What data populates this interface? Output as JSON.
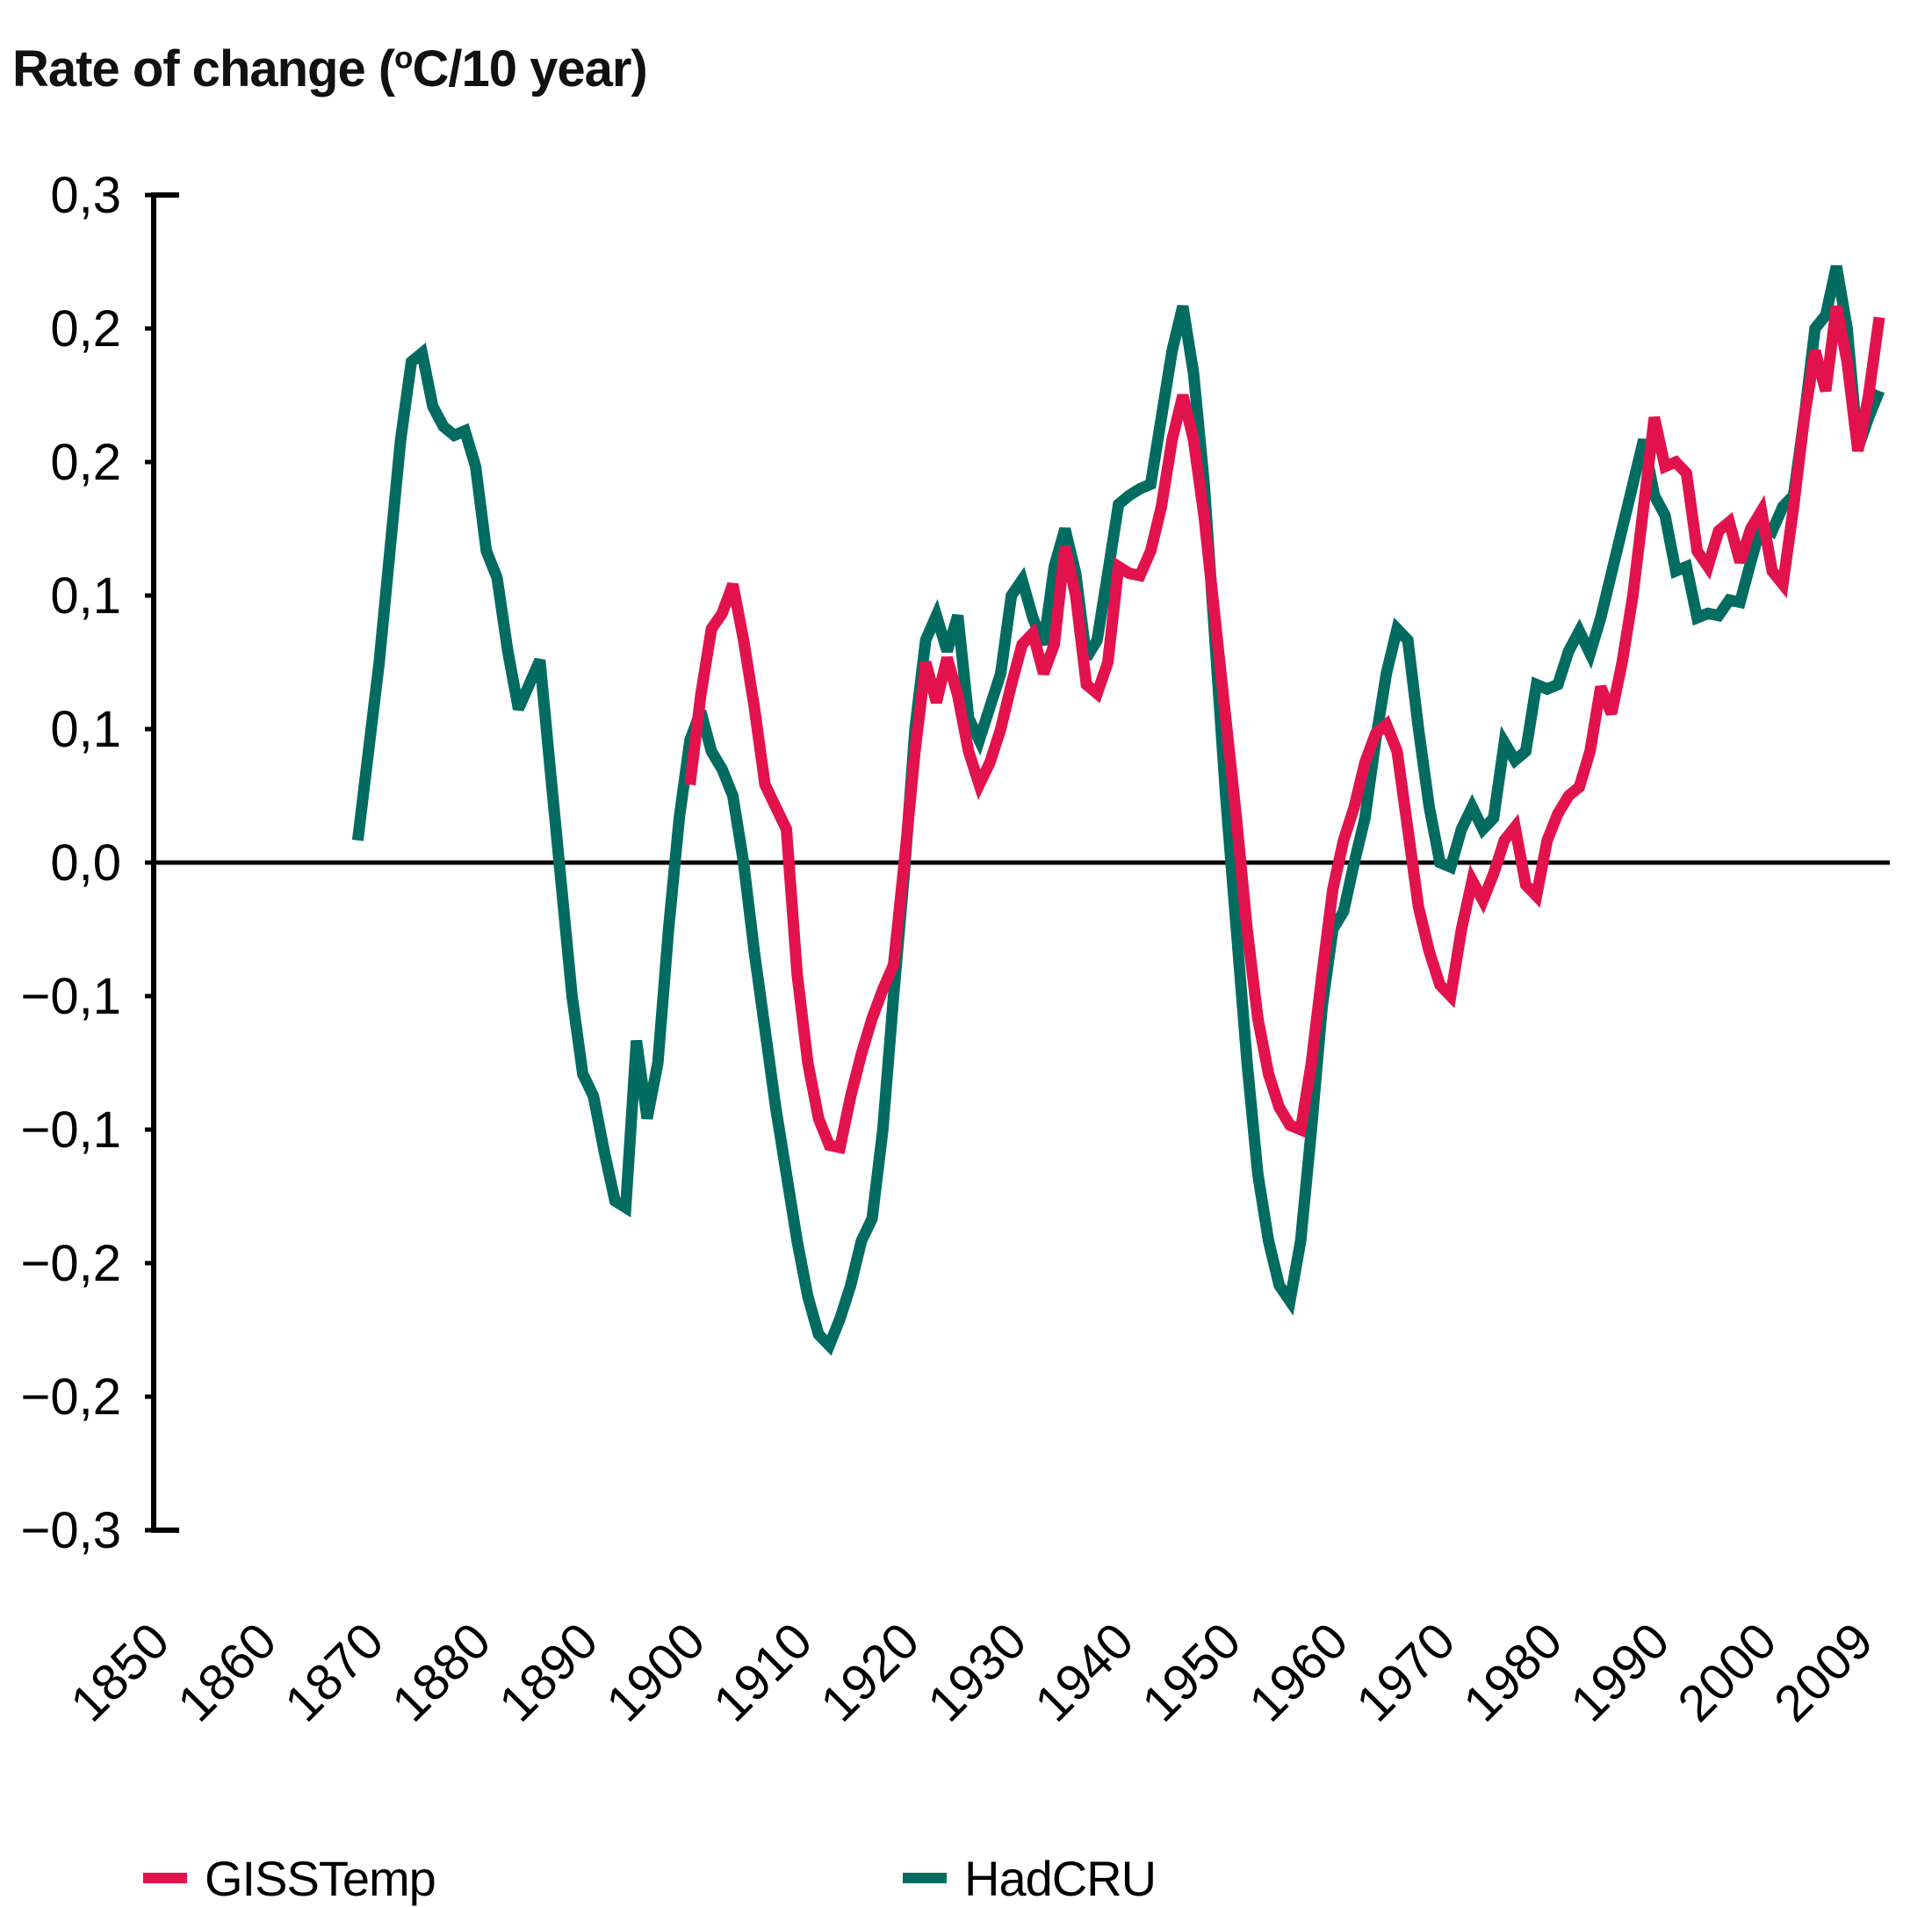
{
  "title": {
    "prefix": "Rate of change (",
    "sup": "o",
    "suffix": "C/10 year)",
    "full": "Rate of change (°C/10 year)"
  },
  "legend": {
    "items": [
      {
        "label": "GISSTemp"
      },
      {
        "label": "HadCRU"
      }
    ]
  },
  "colors": {
    "gisstemp": "#e2134c",
    "hadcru": "#036c61",
    "axis": "#000000",
    "background": "#ffffff"
  },
  "chart_data": {
    "type": "line",
    "title": "Rate of change (°C/10 year)",
    "xlabel": "",
    "ylabel": "Rate of change (°C/10 year)",
    "xlim": [
      1850,
      2009
    ],
    "ylim": [
      -0.3,
      0.3
    ],
    "grid": false,
    "zero_line": true,
    "legend_position": "bottom",
    "x_ticks": [
      1850,
      1860,
      1870,
      1880,
      1890,
      1900,
      1910,
      1920,
      1930,
      1940,
      1950,
      1960,
      1970,
      1980,
      1990,
      2000,
      2009
    ],
    "y_ticks": [
      {
        "value": 0.3,
        "label": "0,3"
      },
      {
        "value": 0.24,
        "label": "0,2"
      },
      {
        "value": 0.18,
        "label": "0,2"
      },
      {
        "value": 0.12,
        "label": "0,1"
      },
      {
        "value": 0.06,
        "label": "0,1"
      },
      {
        "value": 0.0,
        "label": "0,0"
      },
      {
        "value": -0.06,
        "label": "−0,1"
      },
      {
        "value": -0.12,
        "label": "−0,1"
      },
      {
        "value": -0.18,
        "label": "−0,2"
      },
      {
        "value": -0.24,
        "label": "−0,2"
      },
      {
        "value": -0.3,
        "label": "−0,3"
      }
    ],
    "series": [
      {
        "name": "GISSTemp",
        "color": "#e2134c",
        "start_year": 1898,
        "step_years": 1,
        "values": [
          0.035,
          0.075,
          0.105,
          0.112,
          0.125,
          0.1,
          0.07,
          0.035,
          0.025,
          0.015,
          -0.05,
          -0.09,
          -0.115,
          -0.127,
          -0.128,
          -0.105,
          -0.086,
          -0.07,
          -0.057,
          -0.046,
          0.0,
          0.05,
          0.09,
          0.072,
          0.092,
          0.075,
          0.05,
          0.035,
          0.045,
          0.06,
          0.08,
          0.098,
          0.103,
          0.085,
          0.098,
          0.142,
          0.12,
          0.08,
          0.076,
          0.09,
          0.133,
          0.13,
          0.129,
          0.14,
          0.16,
          0.19,
          0.21,
          0.19,
          0.155,
          0.11,
          0.065,
          0.02,
          -0.03,
          -0.07,
          -0.095,
          -0.11,
          -0.118,
          -0.12,
          -0.09,
          -0.05,
          -0.012,
          0.01,
          0.025,
          0.045,
          0.058,
          0.062,
          0.05,
          0.015,
          -0.02,
          -0.04,
          -0.055,
          -0.06,
          -0.03,
          -0.008,
          -0.017,
          -0.005,
          0.01,
          0.016,
          -0.01,
          -0.015,
          0.01,
          0.022,
          0.03,
          0.034,
          0.05,
          0.079,
          0.067,
          0.09,
          0.12,
          0.16,
          0.2,
          0.178,
          0.18,
          0.175,
          0.14,
          0.133,
          0.149,
          0.153,
          0.135,
          0.15,
          0.158,
          0.131,
          0.125,
          0.16,
          0.2,
          0.23,
          0.212,
          0.25,
          0.225,
          0.185,
          0.21,
          0.245
        ]
      },
      {
        "name": "HadCRU",
        "color": "#036c61",
        "start_year": 1867,
        "step_years": 1,
        "values": [
          0.01,
          0.05,
          0.09,
          0.14,
          0.19,
          0.225,
          0.229,
          0.205,
          0.196,
          0.192,
          0.194,
          0.178,
          0.14,
          0.128,
          0.095,
          0.069,
          0.08,
          0.091,
          0.04,
          -0.01,
          -0.06,
          -0.095,
          -0.105,
          -0.13,
          -0.152,
          -0.155,
          -0.08,
          -0.115,
          -0.09,
          -0.03,
          0.02,
          0.055,
          0.068,
          0.05,
          0.042,
          0.03,
          0.0,
          -0.04,
          -0.075,
          -0.11,
          -0.14,
          -0.17,
          -0.195,
          -0.212,
          -0.217,
          -0.205,
          -0.19,
          -0.17,
          -0.16,
          -0.12,
          -0.06,
          -0.005,
          0.06,
          0.1,
          0.111,
          0.095,
          0.111,
          0.065,
          0.055,
          0.07,
          0.085,
          0.12,
          0.127,
          0.11,
          0.098,
          0.133,
          0.15,
          0.13,
          0.092,
          0.1,
          0.13,
          0.161,
          0.165,
          0.168,
          0.17,
          0.2,
          0.23,
          0.25,
          0.22,
          0.17,
          0.1,
          0.03,
          -0.03,
          -0.09,
          -0.14,
          -0.17,
          -0.19,
          -0.197,
          -0.17,
          -0.12,
          -0.065,
          -0.03,
          -0.022,
          0.0,
          0.02,
          0.055,
          0.085,
          0.105,
          0.1,
          0.06,
          0.025,
          0.0,
          -0.002,
          0.015,
          0.025,
          0.015,
          0.02,
          0.054,
          0.046,
          0.05,
          0.08,
          0.078,
          0.08,
          0.095,
          0.104,
          0.094,
          0.11,
          0.13,
          0.15,
          0.17,
          0.19,
          0.165,
          0.156,
          0.131,
          0.133,
          0.11,
          0.112,
          0.111,
          0.118,
          0.117,
          0.135,
          0.152,
          0.149,
          0.16,
          0.165,
          0.2,
          0.24,
          0.246,
          0.268,
          0.24,
          0.186,
          0.2,
          0.212
        ]
      }
    ]
  }
}
